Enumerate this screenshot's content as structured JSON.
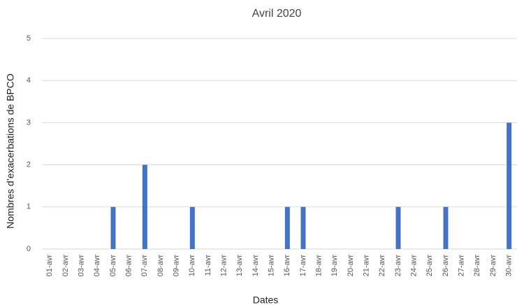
{
  "chart_data": {
    "type": "bar",
    "title": "Avril 2020",
    "x_label": "Dates",
    "y_label": "Nombres d’exacerbations de BPCO",
    "categories": [
      "01-avr",
      "02-avr",
      "03-avr",
      "04-avr",
      "05-avr",
      "06-avr",
      "07-avr",
      "08-avr",
      "09-avr",
      "10-avr",
      "11-avr",
      "12-avr",
      "13-avr",
      "14-avr",
      "15-avr",
      "16-avr",
      "17-avr",
      "18-avr",
      "19-avr",
      "20-avr",
      "21-avr",
      "22-avr",
      "23-avr",
      "24-avr",
      "25-avr",
      "26-avr",
      "27-avr",
      "28-avr",
      "29-avr",
      "30-avr"
    ],
    "values": [
      0,
      0,
      0,
      0,
      1,
      0,
      2,
      0,
      0,
      1,
      0,
      0,
      0,
      0,
      0,
      1,
      1,
      0,
      0,
      0,
      0,
      0,
      1,
      0,
      0,
      1,
      0,
      0,
      0,
      3
    ],
    "color": "#4472c4",
    "ylim": [
      0,
      5
    ],
    "yticks": [
      0,
      1,
      2,
      3,
      4,
      5
    ],
    "grid": true
  }
}
